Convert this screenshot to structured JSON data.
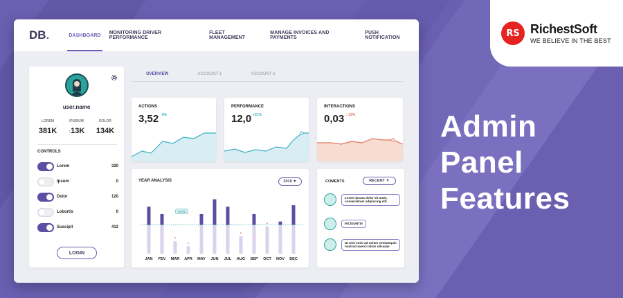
{
  "brand": {
    "logo_mark": "RS",
    "name": "RichestSoft",
    "tagline": "WE BELIEVE IN THE BEST"
  },
  "headline": [
    "Admin",
    "Panel",
    "Features"
  ],
  "app": {
    "logo": "DB",
    "logo_dot": ".",
    "nav": [
      {
        "label": "DASHBOARD",
        "active": true
      },
      {
        "label": "MONITORING DRIVER PERFORMANCE",
        "active": false
      },
      {
        "label": "FLEET MANAGEMENT",
        "active": false
      },
      {
        "label": "MANAGE INVOICES AND PAYMENTS",
        "active": false
      },
      {
        "label": "PUSH NOTIFICATION",
        "active": false
      }
    ],
    "profile": {
      "username": "user.name",
      "stats": [
        {
          "label": "LOREM",
          "value": "381K",
          "arrow": ""
        },
        {
          "label": "IPUSIUM",
          "value": "13K",
          "arrow": "↑"
        },
        {
          "label": "DOLOR",
          "value": "134K",
          "arrow": ""
        }
      ],
      "controls_title": "CONTROLS",
      "controls": [
        {
          "label": "Lorem",
          "value": "320",
          "on": true
        },
        {
          "label": "Ipsum",
          "value": "0",
          "on": false
        },
        {
          "label": "Dolor",
          "value": "120",
          "on": true
        },
        {
          "label": "Lobortis",
          "value": "0",
          "on": false
        },
        {
          "label": "Suscipit",
          "value": "412",
          "on": true
        }
      ],
      "login_label": "LOGIN"
    },
    "subtabs": [
      {
        "label": "OVERVIEW",
        "active": true
      },
      {
        "label": "ACCOUNT 1",
        "active": false
      },
      {
        "label": "ACCOUNT 2",
        "active": false
      }
    ],
    "metrics": [
      {
        "title": "ACTIONS",
        "value": "3,52",
        "delta": "↑5%",
        "color": "#3aaec2",
        "fill": "#d8eef3"
      },
      {
        "title": "PERFORMANCE",
        "value": "12,0",
        "delta": "+21%",
        "color": "#3aaec2",
        "fill": "#d8eef3"
      },
      {
        "title": "INTERACTIONS",
        "value": "0,03",
        "delta": "↓-12%",
        "color": "#e0735b",
        "fill": "#f7dcd2"
      }
    ],
    "year_analysis": {
      "title": "YEAR ANALYSIS",
      "year_select": "2019 ▼",
      "goal_label": "GOAL"
    },
    "comments": {
      "title": "COMENTS",
      "filter_select": "RECENT ▼",
      "items": [
        {
          "text": "Lorem ipsum dolor sit amet, consectetuer adipiscing elit."
        },
        {
          "text": "INCIDUNTIII"
        },
        {
          "text": "Ut wisi enim ad minim veniamquis nostrud exerci tation ullcorpe"
        }
      ]
    }
  },
  "chart_data": {
    "type": "bar",
    "categories": [
      "JAN",
      "FEV",
      "MAR",
      "APR",
      "MAY",
      "JUN",
      "JUL",
      "AUG",
      "SEP",
      "OCT",
      "NOV",
      "DEC"
    ],
    "series": [
      {
        "values": [
          95,
          80,
          25,
          15,
          80,
          110,
          95,
          35,
          80,
          55,
          65,
          98
        ]
      }
    ],
    "goal": 58,
    "ylim": [
      0,
      115
    ],
    "grid": false
  },
  "colors": {
    "bar_above_goal": "#5a4fa2",
    "bar_below_goal": "#d9d3ec",
    "goal_line": "#3aaea0",
    "marker": "#e5484d"
  }
}
